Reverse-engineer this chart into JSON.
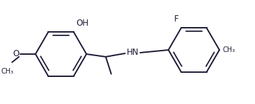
{
  "bg_color": "#ffffff",
  "line_color": "#1a1a35",
  "line_width": 1.4,
  "font_size": 8.5,
  "figsize": [
    3.66,
    1.5
  ],
  "dpi": 100,
  "xlim": [
    0,
    3.66
  ],
  "ylim": [
    0,
    1.5
  ]
}
